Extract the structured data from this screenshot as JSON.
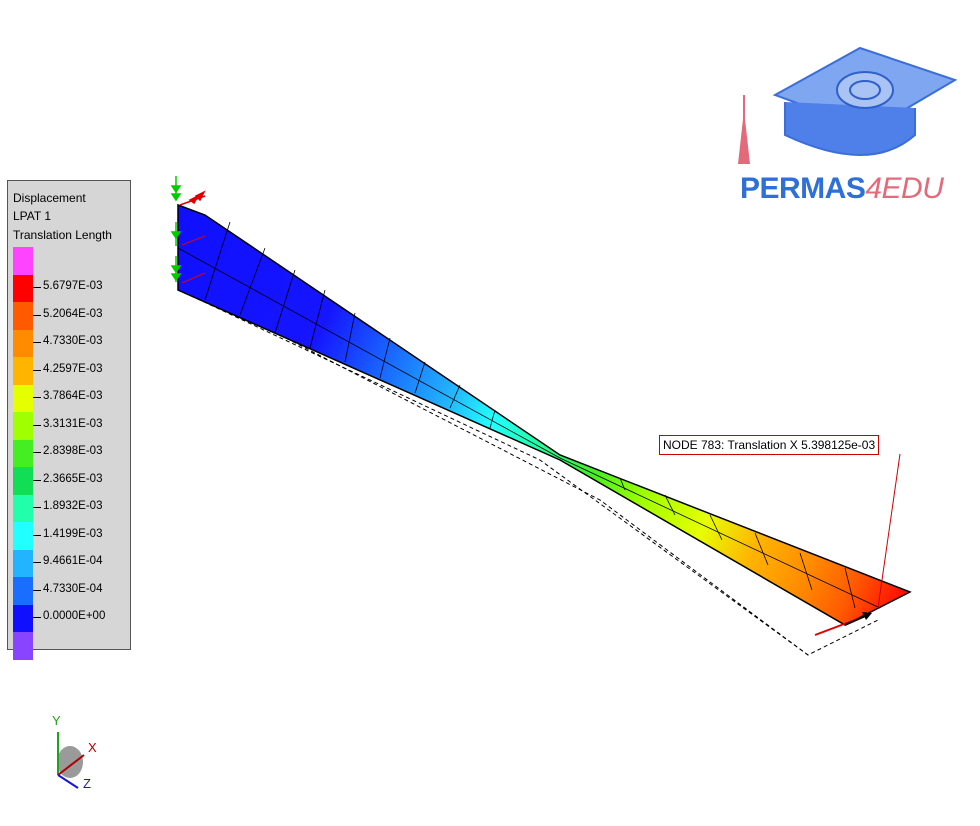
{
  "legend": {
    "line1": "Displacement",
    "line2": "LPAT 1",
    "line3": "Translation Length",
    "bands": [
      {
        "color": "#ff44ff",
        "label": ""
      },
      {
        "color": "#ff0000",
        "label": "5.6797E-03"
      },
      {
        "color": "#ff5a00",
        "label": "5.2064E-03"
      },
      {
        "color": "#ff8c00",
        "label": "4.7330E-03"
      },
      {
        "color": "#ffb400",
        "label": "4.2597E-03"
      },
      {
        "color": "#e6ff00",
        "label": "3.7864E-03"
      },
      {
        "color": "#a0ff00",
        "label": "3.3131E-03"
      },
      {
        "color": "#44ee22",
        "label": "2.8398E-03"
      },
      {
        "color": "#11dd55",
        "label": "2.3665E-03"
      },
      {
        "color": "#22ffaa",
        "label": "1.8932E-03"
      },
      {
        "color": "#22ffff",
        "label": "1.4199E-03"
      },
      {
        "color": "#22b4ff",
        "label": "9.4661E-04"
      },
      {
        "color": "#1a6eff",
        "label": "4.7330E-04"
      },
      {
        "color": "#1010ff",
        "label": "0.0000E+00"
      },
      {
        "color": "#8844ff",
        "label": ""
      }
    ]
  },
  "logo": {
    "main": "PERMAS",
    "suffix": "4EDU"
  },
  "callout": {
    "text": "NODE   783: Translation X 5.398125e-03"
  },
  "triad": {
    "x": "X",
    "y": "Y",
    "z": "Z"
  }
}
